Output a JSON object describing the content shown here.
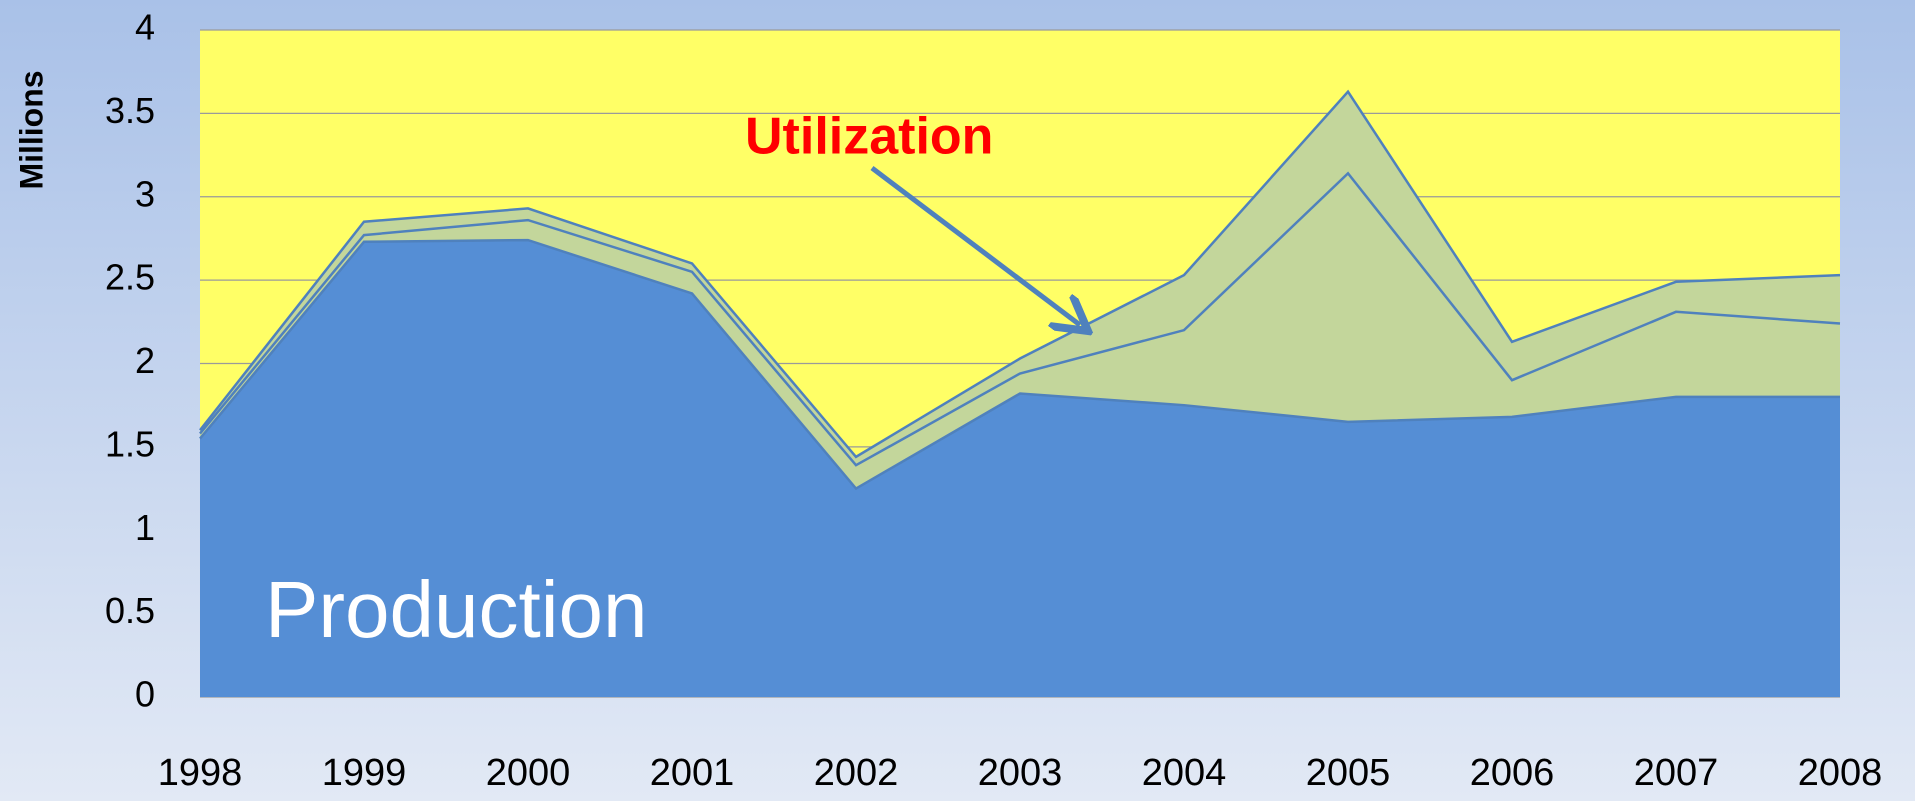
{
  "chart_data": {
    "type": "stacked_area",
    "y_axis_label": "Millions",
    "categories": [
      "1998",
      "1999",
      "2000",
      "2001",
      "2002",
      "2003",
      "2004",
      "2005",
      "2006",
      "2007",
      "2008"
    ],
    "series": [
      {
        "name": "Production",
        "color": "#558ed5",
        "values": [
          1.55,
          2.73,
          2.74,
          2.42,
          1.25,
          1.82,
          1.75,
          1.65,
          1.68,
          1.8,
          1.8
        ]
      },
      {
        "color": "#c3d69b",
        "values": [
          0.03,
          0.04,
          0.12,
          0.13,
          0.14,
          0.12,
          0.45,
          1.49,
          0.22,
          0.51,
          0.44
        ]
      },
      {
        "name": "Utilization",
        "color": "#c3d69b",
        "values": [
          0.02,
          0.08,
          0.07,
          0.05,
          0.05,
          0.09,
          0.33,
          0.49,
          0.23,
          0.18,
          0.29
        ]
      }
    ],
    "ylim": [
      0,
      4
    ],
    "yticks": [
      0,
      0.5,
      1,
      1.5,
      2,
      2.5,
      3,
      3.5,
      4
    ],
    "grid": true,
    "plot_background": "#ffff66",
    "line_color": "#4f81bd"
  }
}
